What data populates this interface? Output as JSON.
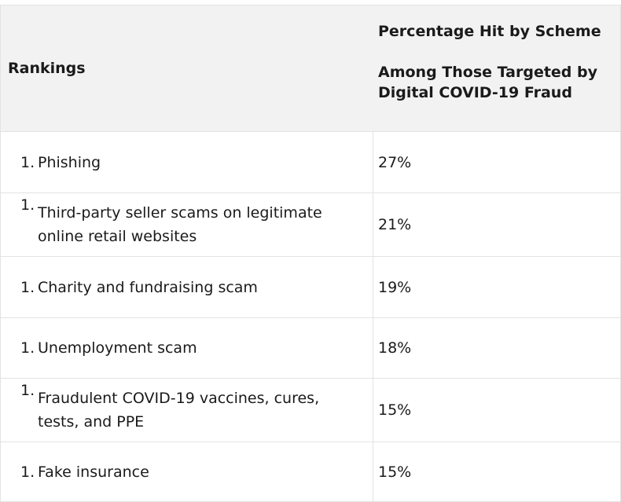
{
  "table": {
    "headers": {
      "rankings": "Rankings",
      "percentage_line1": "Percentage Hit by Scheme",
      "percentage_line2": "Among Those Targeted by Digital COVID-19 Fraud"
    },
    "rows": [
      {
        "number": "1.",
        "scheme": "Phishing",
        "percentage": "27%"
      },
      {
        "number": "1.",
        "scheme": "Third-party seller scams on legitimate online retail websites",
        "percentage": "21%"
      },
      {
        "number": "1.",
        "scheme": "Charity and fundraising scam",
        "percentage": "19%"
      },
      {
        "number": "1.",
        "scheme": "Unemployment scam",
        "percentage": "18%"
      },
      {
        "number": "1.",
        "scheme": "Fraudulent COVID-19 vaccines, cures, tests, and PPE",
        "percentage": "15%"
      },
      {
        "number": "1.",
        "scheme": "Fake insurance",
        "percentage": "15%"
      }
    ]
  }
}
